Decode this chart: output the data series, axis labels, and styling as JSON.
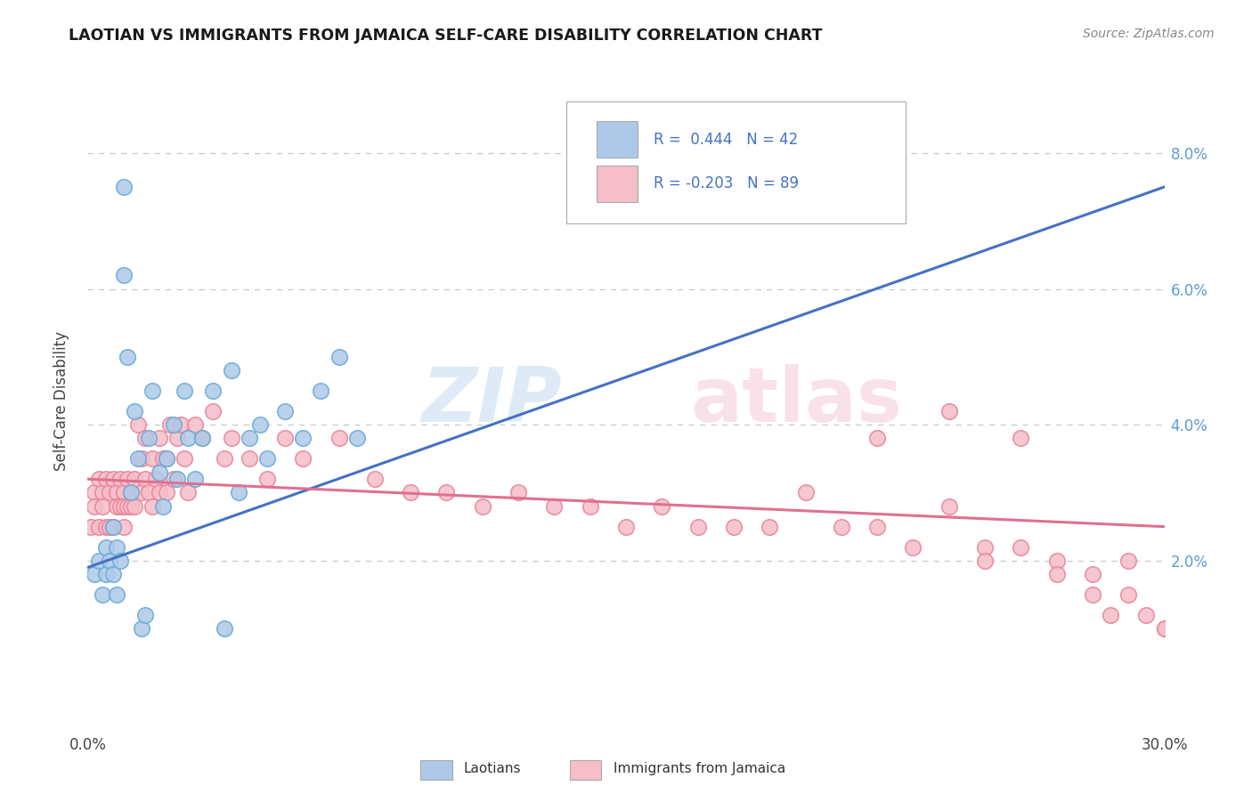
{
  "title": "LAOTIAN VS IMMIGRANTS FROM JAMAICA SELF-CARE DISABILITY CORRELATION CHART",
  "source_text": "Source: ZipAtlas.com",
  "ylabel": "Self-Care Disability",
  "xlim": [
    0.0,
    0.3
  ],
  "ylim": [
    -0.005,
    0.092
  ],
  "xticks": [
    0.0,
    0.05,
    0.1,
    0.15,
    0.2,
    0.25,
    0.3
  ],
  "xtick_labels": [
    "0.0%",
    "",
    "",
    "",
    "",
    "",
    "30.0%"
  ],
  "yticks": [
    0.02,
    0.04,
    0.06,
    0.08
  ],
  "ytick_labels": [
    "2.0%",
    "4.0%",
    "6.0%",
    "8.0%"
  ],
  "laotian_color": "#aec9e8",
  "laotian_edge_color": "#6aaad4",
  "jamaica_color": "#f5bec8",
  "jamaica_edge_color": "#e8849a",
  "laotian_line_color": "#4472c4",
  "jamaica_line_color": "#e07090",
  "legend_R1": "0.444",
  "legend_N1": "42",
  "legend_R2": "-0.203",
  "legend_N2": "89",
  "background_color": "#ffffff",
  "grid_color": "#c8c8c8",
  "laotian_x": [
    0.002,
    0.003,
    0.004,
    0.005,
    0.005,
    0.006,
    0.007,
    0.007,
    0.008,
    0.008,
    0.009,
    0.01,
    0.01,
    0.011,
    0.012,
    0.013,
    0.014,
    0.015,
    0.016,
    0.017,
    0.018,
    0.02,
    0.021,
    0.022,
    0.024,
    0.025,
    0.027,
    0.028,
    0.03,
    0.032,
    0.035,
    0.038,
    0.04,
    0.042,
    0.045,
    0.048,
    0.05,
    0.055,
    0.06,
    0.065,
    0.07,
    0.075
  ],
  "laotian_y": [
    0.018,
    0.02,
    0.015,
    0.022,
    0.018,
    0.02,
    0.025,
    0.018,
    0.022,
    0.015,
    0.02,
    0.075,
    0.062,
    0.05,
    0.03,
    0.042,
    0.035,
    0.01,
    0.012,
    0.038,
    0.045,
    0.033,
    0.028,
    0.035,
    0.04,
    0.032,
    0.045,
    0.038,
    0.032,
    0.038,
    0.045,
    0.01,
    0.048,
    0.03,
    0.038,
    0.04,
    0.035,
    0.042,
    0.038,
    0.045,
    0.05,
    0.038
  ],
  "jamaica_x": [
    0.001,
    0.002,
    0.002,
    0.003,
    0.003,
    0.004,
    0.004,
    0.005,
    0.005,
    0.006,
    0.006,
    0.007,
    0.007,
    0.008,
    0.008,
    0.009,
    0.009,
    0.01,
    0.01,
    0.01,
    0.011,
    0.011,
    0.012,
    0.012,
    0.013,
    0.013,
    0.014,
    0.015,
    0.015,
    0.016,
    0.016,
    0.017,
    0.018,
    0.018,
    0.019,
    0.02,
    0.02,
    0.021,
    0.022,
    0.022,
    0.023,
    0.024,
    0.025,
    0.026,
    0.027,
    0.028,
    0.03,
    0.032,
    0.035,
    0.038,
    0.04,
    0.045,
    0.05,
    0.055,
    0.06,
    0.07,
    0.08,
    0.09,
    0.1,
    0.11,
    0.12,
    0.13,
    0.14,
    0.15,
    0.16,
    0.17,
    0.18,
    0.19,
    0.2,
    0.21,
    0.22,
    0.23,
    0.24,
    0.25,
    0.26,
    0.27,
    0.28,
    0.29,
    0.22,
    0.25,
    0.27,
    0.28,
    0.285,
    0.29,
    0.295,
    0.3,
    0.24,
    0.26,
    0.3
  ],
  "jamaica_y": [
    0.025,
    0.03,
    0.028,
    0.032,
    0.025,
    0.03,
    0.028,
    0.032,
    0.025,
    0.03,
    0.025,
    0.032,
    0.025,
    0.03,
    0.028,
    0.032,
    0.028,
    0.03,
    0.028,
    0.025,
    0.032,
    0.028,
    0.03,
    0.028,
    0.032,
    0.028,
    0.04,
    0.035,
    0.03,
    0.038,
    0.032,
    0.03,
    0.035,
    0.028,
    0.032,
    0.03,
    0.038,
    0.035,
    0.03,
    0.035,
    0.04,
    0.032,
    0.038,
    0.04,
    0.035,
    0.03,
    0.04,
    0.038,
    0.042,
    0.035,
    0.038,
    0.035,
    0.032,
    0.038,
    0.035,
    0.038,
    0.032,
    0.03,
    0.03,
    0.028,
    0.03,
    0.028,
    0.028,
    0.025,
    0.028,
    0.025,
    0.025,
    0.025,
    0.03,
    0.025,
    0.025,
    0.022,
    0.028,
    0.022,
    0.022,
    0.02,
    0.018,
    0.02,
    0.038,
    0.02,
    0.018,
    0.015,
    0.012,
    0.015,
    0.012,
    0.01,
    0.042,
    0.038,
    0.01
  ],
  "lao_line_x0": 0.0,
  "lao_line_y0": 0.019,
  "lao_line_x1": 0.3,
  "lao_line_y1": 0.075,
  "jam_line_x0": 0.0,
  "jam_line_y0": 0.032,
  "jam_line_x1": 0.3,
  "jam_line_y1": 0.025
}
